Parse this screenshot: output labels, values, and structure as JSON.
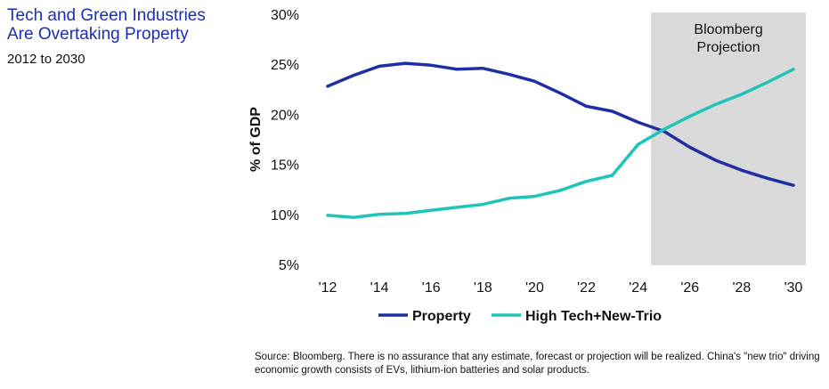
{
  "header": {
    "title": "Tech and Green Industries Are Overtaking Property",
    "subtitle": "2012 to 2030"
  },
  "footer": {
    "source": "Source: Bloomberg. There is no assurance that any estimate, forecast or projection will be realized. China's \"new trio\" driving economic growth consists of EVs, lithium-ion batteries and solar products."
  },
  "chart_data": {
    "type": "line",
    "title": "Tech and Green Industries Are Overtaking Property",
    "ylabel": "% of GDP",
    "xlabel": "",
    "ylim": [
      5,
      30
    ],
    "yticks": [
      5,
      10,
      15,
      20,
      25,
      30
    ],
    "ytick_labels": [
      "5%",
      "10%",
      "15%",
      "20%",
      "25%",
      "30%"
    ],
    "xlim": [
      2012,
      2030
    ],
    "xticks": [
      2012,
      2014,
      2016,
      2018,
      2020,
      2022,
      2024,
      2026,
      2028,
      2030
    ],
    "xtick_labels": [
      "'12",
      "'14",
      "'16",
      "'18",
      "'20",
      "'22",
      "'24",
      "'26",
      "'28",
      "'30"
    ],
    "projection": {
      "label_line1": "Bloomberg",
      "label_line2": "Projection",
      "start": 2024.5,
      "end": 2030.5,
      "color": "#d9d9d9"
    },
    "legend_position": "bottom",
    "series": [
      {
        "name": "Property",
        "color": "#1f2fa3",
        "x": [
          2012,
          2013,
          2014,
          2015,
          2016,
          2017,
          2018,
          2019,
          2020,
          2021,
          2022,
          2023,
          2024,
          2025,
          2026,
          2027,
          2028,
          2029,
          2030
        ],
        "values": [
          22.8,
          23.9,
          24.8,
          25.1,
          24.9,
          24.5,
          24.6,
          24.0,
          23.3,
          22.1,
          20.8,
          20.3,
          19.2,
          18.3,
          16.7,
          15.4,
          14.4,
          13.6,
          12.9
        ]
      },
      {
        "name": "High Tech+New-Trio",
        "color": "#1fc4b8",
        "x": [
          2012,
          2013,
          2014,
          2015,
          2016,
          2017,
          2018,
          2019,
          2020,
          2021,
          2022,
          2023,
          2024,
          2025,
          2026,
          2027,
          2028,
          2029,
          2030
        ],
        "values": [
          9.9,
          9.7,
          10.0,
          10.1,
          10.4,
          10.7,
          11.0,
          11.6,
          11.8,
          12.4,
          13.3,
          13.9,
          17.0,
          18.5,
          19.8,
          21.0,
          22.0,
          23.2,
          24.5
        ]
      }
    ]
  }
}
